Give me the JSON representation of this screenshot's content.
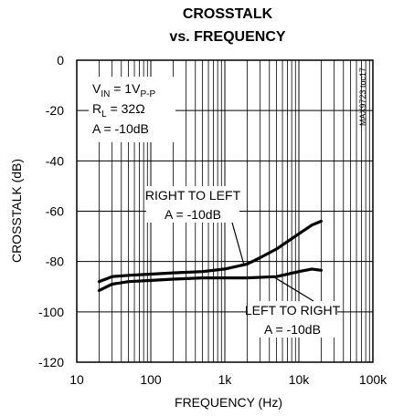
{
  "chart_data": {
    "type": "line",
    "title": [
      "CROSSTALK",
      "vs. FREQUENCY"
    ],
    "xlabel": "FREQUENCY (Hz)",
    "ylabel": "CROSSTALK (dB)",
    "x_scale": "log",
    "xlim": [
      10,
      100000
    ],
    "ylim": [
      -120,
      0
    ],
    "x_ticks": [
      10,
      100,
      1000,
      10000,
      100000
    ],
    "x_tick_labels": [
      "10",
      "100",
      "1k",
      "10k",
      "100k"
    ],
    "y_ticks": [
      0,
      -20,
      -40,
      -60,
      -80,
      -100,
      -120
    ],
    "y_tick_labels": [
      "0",
      "-20",
      "-40",
      "-60",
      "-80",
      "-100",
      "-120"
    ],
    "grid": true,
    "conditions": [
      {
        "main": "V",
        "sub": "IN",
        "rest": " = 1V",
        "sub2": "P-P"
      },
      {
        "main": "R",
        "sub": "L",
        "rest": " = 32Ω",
        "sub2": ""
      },
      {
        "main": "A = -10dB",
        "sub": "",
        "rest": "",
        "sub2": ""
      }
    ],
    "side_label": "MAX9723 toc17",
    "series": [
      {
        "label_lines": [
          "RIGHT TO LEFT",
          "A = -10dB"
        ],
        "label_anchor": [
          1800,
          -81
        ],
        "x": [
          20,
          30,
          50,
          100,
          200,
          500,
          1000,
          2000,
          3000,
          5000,
          10000,
          15000,
          20000
        ],
        "y": [
          -88,
          -86,
          -85.5,
          -85,
          -84.5,
          -84,
          -83,
          -81,
          -78.5,
          -75,
          -69,
          -65.5,
          -64
        ]
      },
      {
        "label_lines": [
          "LEFT TO RIGHT",
          "A = -10dB"
        ],
        "label_anchor": [
          4500,
          -86
        ],
        "x": [
          20,
          30,
          50,
          100,
          200,
          500,
          1000,
          2000,
          5000,
          10000,
          15000,
          20000
        ],
        "y": [
          -91.5,
          -89,
          -88,
          -87.5,
          -87,
          -86.5,
          -86.5,
          -86.5,
          -86,
          -84,
          -83,
          -83.5
        ]
      }
    ]
  }
}
